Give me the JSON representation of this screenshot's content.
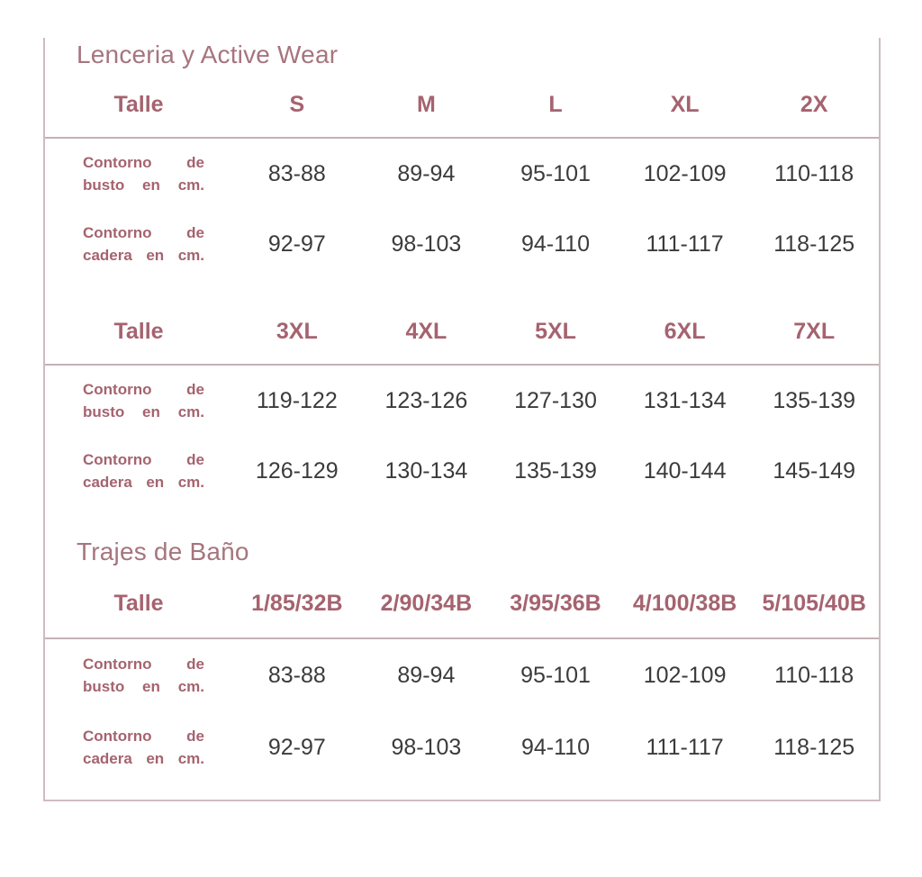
{
  "document": {
    "type": "size-chart",
    "colors": {
      "accent_text": "#a5636f",
      "title_text": "#a6757d",
      "value_text": "#3b3b3b",
      "rule": "#c4b2b5",
      "card_border": "#cfbcbf",
      "background": "#ffffff"
    },
    "sections": [
      {
        "title": "Lenceria y Active Wear",
        "tables": [
          {
            "size_label": "Talle",
            "sizes": [
              "S",
              "M",
              "L",
              "XL",
              "2X"
            ],
            "rows": [
              {
                "label": "Contorno de busto en cm.",
                "values": [
                  "83-88",
                  "89-94",
                  "95-101",
                  "102-109",
                  "110-118"
                ]
              },
              {
                "label": "Contorno de cadera en cm.",
                "values": [
                  "92-97",
                  "98-103",
                  "94-110",
                  "111-117",
                  "118-125"
                ]
              }
            ]
          },
          {
            "size_label": "Talle",
            "sizes": [
              "3XL",
              "4XL",
              "5XL",
              "6XL",
              "7XL"
            ],
            "rows": [
              {
                "label": "Contorno de busto en cm.",
                "values": [
                  "119-122",
                  "123-126",
                  "127-130",
                  "131-134",
                  "135-139"
                ]
              },
              {
                "label": "Contorno de cadera en cm.",
                "values": [
                  "126-129",
                  "130-134",
                  "135-139",
                  "140-144",
                  "145-149"
                ]
              }
            ]
          }
        ]
      },
      {
        "title": "Trajes de Baño",
        "tables": [
          {
            "size_label": "Talle",
            "sizes": [
              "1/85/32B",
              "2/90/34B",
              "3/95/36B",
              "4/100/38B",
              "5/105/40B"
            ],
            "rows": [
              {
                "label": "Contorno de busto en cm.",
                "values": [
                  "83-88",
                  "89-94",
                  "95-101",
                  "102-109",
                  "110-118"
                ]
              },
              {
                "label": "Contorno de cadera en cm.",
                "values": [
                  "92-97",
                  "98-103",
                  "94-110",
                  "111-117",
                  "118-125"
                ]
              }
            ]
          }
        ]
      }
    ]
  }
}
